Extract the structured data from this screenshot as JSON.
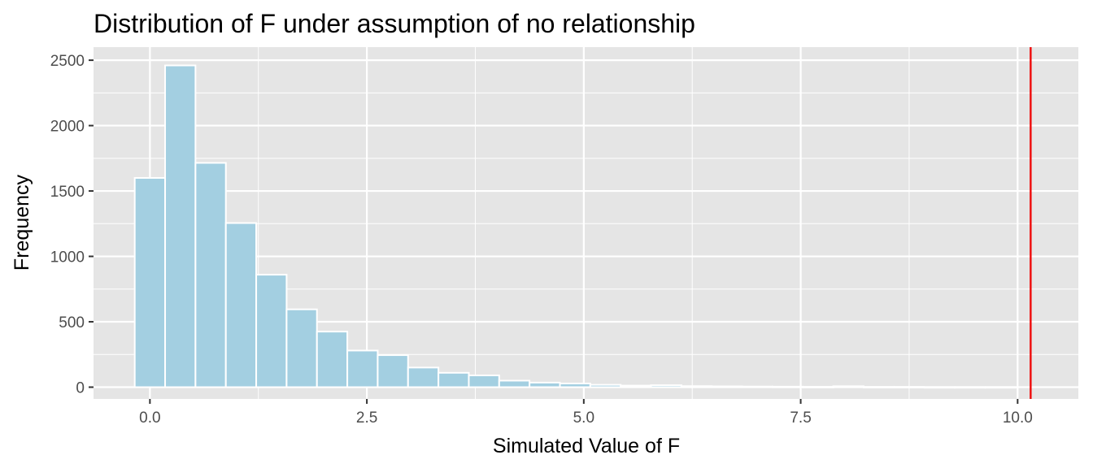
{
  "chart_data": {
    "type": "bar",
    "title": "Distribution of F under assumption of no relationship",
    "xlabel": "Simulated Value of F",
    "ylabel": "Frequency",
    "bin_width": 0.35,
    "bin_centers": [
      0.0,
      0.35,
      0.7,
      1.05,
      1.4,
      1.75,
      2.1,
      2.45,
      2.8,
      3.15,
      3.5,
      3.85,
      4.2,
      4.55,
      4.9,
      5.25,
      5.6,
      5.95,
      6.3,
      6.65,
      7.0,
      7.35,
      7.7,
      8.05,
      8.4,
      8.75,
      9.1,
      9.45,
      9.8
    ],
    "values": [
      1600,
      2460,
      1715,
      1255,
      860,
      595,
      425,
      280,
      245,
      150,
      110,
      90,
      50,
      35,
      28,
      18,
      12,
      15,
      8,
      6,
      5,
      4,
      3,
      7,
      2,
      2,
      1,
      1,
      1
    ],
    "observed_F": 10.15,
    "xlim": [
      -0.65,
      10.7
    ],
    "ylim": [
      -90,
      2600
    ],
    "x_ticks": [
      0.0,
      2.5,
      5.0,
      7.5,
      10.0
    ],
    "x_tick_labels": [
      "0.0",
      "2.5",
      "5.0",
      "7.5",
      "10.0"
    ],
    "y_ticks": [
      0,
      500,
      1000,
      1500,
      2000,
      2500
    ],
    "y_tick_labels": [
      "0",
      "500",
      "1000",
      "1500",
      "2000",
      "2500"
    ],
    "grid": true,
    "legend": "none",
    "colors": {
      "panel": "#e5e5e5",
      "bar_fill": "#a3cfe1",
      "bar_stroke": "#ffffff",
      "grid": "#ffffff",
      "observed_line": "#ee1111",
      "tick_text": "#4d4d4d"
    }
  }
}
